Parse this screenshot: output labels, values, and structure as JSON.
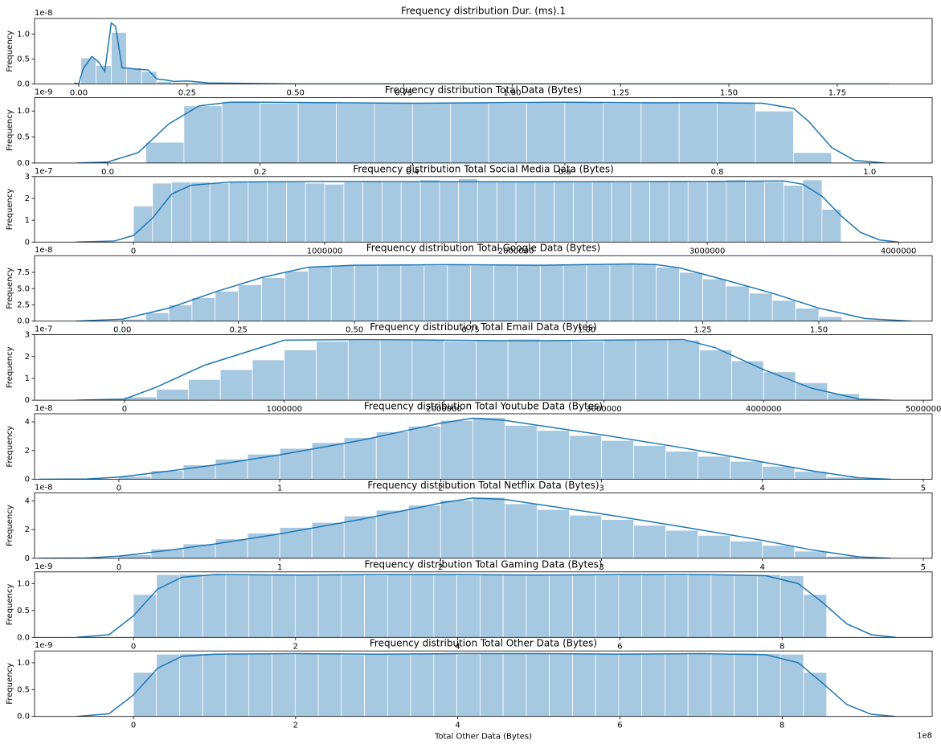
{
  "chart_data": [
    {
      "type": "histogram",
      "title": "Frequency distribution Dur. (ms).1",
      "ylabel": "Frequency",
      "y_offset_label": "1e-8",
      "bins": [
        0.005,
        0.04,
        0.075,
        0.11,
        0.145,
        0.18,
        0.215,
        0.25,
        0.285,
        0.32
      ],
      "counts": [
        0.52,
        0.37,
        1.03,
        0.32,
        0.25,
        0.05,
        0.03,
        0.02,
        0.01
      ],
      "kde": {
        "x": [
          -0.01,
          0.0,
          0.01,
          0.03,
          0.045,
          0.06,
          0.075,
          0.085,
          0.1,
          0.11,
          0.13,
          0.16,
          0.18,
          0.2,
          0.22,
          0.25,
          0.3,
          0.4,
          0.5,
          1.0,
          1.5,
          1.87
        ],
        "y": [
          0.02,
          0.0,
          0.3,
          0.55,
          0.45,
          0.25,
          1.22,
          1.15,
          0.32,
          0.32,
          0.3,
          0.28,
          0.1,
          0.08,
          0.05,
          0.06,
          0.02,
          0.01,
          0,
          0,
          0,
          0
        ]
      },
      "bar_color": "#a6c8e1",
      "line_color": "#1f77b4",
      "xlim": [
        -0.102,
        1.969
      ],
      "ylim": [
        0,
        1.31
      ],
      "xticks": [
        {
          "value": 0,
          "label": "0.00"
        },
        {
          "value": 0.25,
          "label": "0.25"
        },
        {
          "value": 0.5,
          "label": "0.50"
        },
        {
          "value": 0.75,
          "label": "0.75"
        },
        {
          "value": 1,
          "label": "1.00"
        },
        {
          "value": 1.25,
          "label": "1.25"
        },
        {
          "value": 1.5,
          "label": "1.50"
        },
        {
          "value": 1.75,
          "label": "1.75"
        }
      ],
      "yticks": [
        {
          "value": 0,
          "label": "0.0"
        },
        {
          "value": 0.5,
          "label": "0.5"
        },
        {
          "value": 1,
          "label": "1.0"
        }
      ]
    },
    {
      "type": "histogram",
      "title": "Frequency distribution Total Data (Bytes)",
      "ylabel": "Frequency",
      "y_offset_label": "1e-9",
      "bins": [
        0.05,
        0.1,
        0.15,
        0.2,
        0.25,
        0.3,
        0.35,
        0.4,
        0.45,
        0.5,
        0.55,
        0.6,
        0.65,
        0.7,
        0.75,
        0.8,
        0.85,
        0.9,
        0.95
      ],
      "counts": [
        0.4,
        1.1,
        1.17,
        1.15,
        1.16,
        1.15,
        1.17,
        1.15,
        1.16,
        1.15,
        1.16,
        1.17,
        1.15,
        1.16,
        1.15,
        1.16,
        1.0,
        0.2
      ],
      "kde": {
        "x": [
          -0.04,
          0,
          0.04,
          0.08,
          0.12,
          0.16,
          0.2,
          0.3,
          0.4,
          0.5,
          0.6,
          0.7,
          0.8,
          0.86,
          0.9,
          0.92,
          0.95,
          0.98,
          1.02
        ],
        "y": [
          0,
          0.02,
          0.2,
          0.75,
          1.1,
          1.17,
          1.17,
          1.16,
          1.15,
          1.16,
          1.17,
          1.16,
          1.16,
          1.15,
          1.05,
          0.8,
          0.3,
          0.05,
          0
        ]
      },
      "bar_color": "#a6c8e1",
      "line_color": "#1f77b4",
      "xlim": [
        -0.096,
        1.082
      ],
      "ylim": [
        0,
        1.26
      ],
      "xticks": [
        {
          "value": 0,
          "label": "0.0"
        },
        {
          "value": 0.2,
          "label": "0.2"
        },
        {
          "value": 0.4,
          "label": "0.4"
        },
        {
          "value": 0.6,
          "label": "0.6"
        },
        {
          "value": 0.8,
          "label": "0.8"
        },
        {
          "value": 1,
          "label": "1.0"
        }
      ],
      "yticks": [
        {
          "value": 0,
          "label": "0.0"
        },
        {
          "value": 0.5,
          "label": "0.5"
        },
        {
          "value": 1,
          "label": "1.0"
        }
      ]
    },
    {
      "type": "histogram",
      "title": "Frequency distribution Total Social Media Data (Bytes)",
      "ylabel": "Frequency",
      "y_offset_label": "1e-7",
      "bins": [
        0,
        100000,
        200000,
        300000,
        400000,
        500000,
        600000,
        700000,
        800000,
        900000,
        1000000,
        1100000,
        1200000,
        1300000,
        1400000,
        1500000,
        1600000,
        1700000,
        1800000,
        1900000,
        2000000,
        2100000,
        2200000,
        2300000,
        2400000,
        2500000,
        2600000,
        2700000,
        2800000,
        2900000,
        3000000,
        3100000,
        3200000,
        3300000,
        3400000,
        3500000,
        3600000,
        3700000
      ],
      "counts": [
        1.65,
        2.7,
        2.75,
        2.75,
        2.7,
        2.75,
        2.8,
        2.75,
        2.75,
        2.7,
        2.65,
        2.75,
        2.8,
        2.75,
        2.75,
        2.85,
        2.8,
        2.9,
        2.8,
        2.75,
        2.8,
        2.75,
        2.8,
        2.75,
        2.8,
        2.75,
        2.75,
        2.8,
        2.8,
        2.75,
        2.8,
        2.85,
        2.8,
        2.75,
        2.6,
        2.85,
        1.5
      ],
      "kde": {
        "x": [
          -300000,
          -100000,
          0,
          100000,
          200000,
          300000,
          500000,
          1000000,
          2000000,
          3000000,
          3400000,
          3500000,
          3600000,
          3700000,
          3800000,
          3900000,
          4000000
        ],
        "y": [
          0,
          0.05,
          0.3,
          1.1,
          2.2,
          2.6,
          2.75,
          2.78,
          2.76,
          2.78,
          2.8,
          2.65,
          2.1,
          1.2,
          0.45,
          0.1,
          0
        ]
      },
      "bar_color": "#a6c8e1",
      "line_color": "#1f77b4",
      "xlim": [
        -517000,
        4176000
      ],
      "ylim": [
        0,
        3
      ],
      "xticks": [
        0,
        1000000,
        2000000,
        3000000,
        4000000
      ],
      "yticks": [
        0,
        1,
        2,
        3
      ]
    },
    {
      "type": "histogram",
      "title": "Frequency distribution Total Google Data (Bytes)",
      "ylabel": "Frequency",
      "y_offset_label": "1e-8",
      "bins": [
        0,
        0.05,
        0.1,
        0.15,
        0.2,
        0.25,
        0.3,
        0.35,
        0.4,
        0.45,
        0.5,
        0.55,
        0.6,
        0.65,
        0.7,
        0.75,
        0.8,
        0.85,
        0.9,
        0.95,
        1.0,
        1.05,
        1.1,
        1.15,
        1.2,
        1.25,
        1.3,
        1.35,
        1.4,
        1.45,
        1.5,
        1.55
      ],
      "counts": [
        0.3,
        1.3,
        2.5,
        3.6,
        4.6,
        5.6,
        6.7,
        7.7,
        8.4,
        8.6,
        8.7,
        8.7,
        8.6,
        8.6,
        8.7,
        8.6,
        8.6,
        8.7,
        8.7,
        8.8,
        8.7,
        8.8,
        8.8,
        8.3,
        7.5,
        6.5,
        5.4,
        4.3,
        3.2,
        2.0,
        0.7
      ],
      "kde": {
        "x": [
          -0.1,
          0,
          0.1,
          0.2,
          0.3,
          0.4,
          0.5,
          0.7,
          0.9,
          1.1,
          1.15,
          1.2,
          1.3,
          1.4,
          1.5,
          1.6,
          1.7
        ],
        "y": [
          0,
          0.3,
          2.0,
          4.5,
          6.7,
          8.3,
          8.6,
          8.7,
          8.6,
          8.8,
          8.7,
          8.2,
          6.3,
          4.3,
          2.0,
          0.4,
          0
        ]
      },
      "bar_color": "#a6c8e1",
      "line_color": "#1f77b4",
      "xlim": [
        -0.189,
        1.744
      ],
      "ylim": [
        0,
        10.08
      ],
      "xticks": [
        {
          "value": 0,
          "label": "0.00"
        },
        {
          "value": 0.25,
          "label": "0.25"
        },
        {
          "value": 0.5,
          "label": "0.50"
        },
        {
          "value": 0.75,
          "label": "0.75"
        },
        {
          "value": 1,
          "label": "1.00"
        },
        {
          "value": 1.25,
          "label": "1.25"
        },
        {
          "value": 1.5,
          "label": "1.50"
        }
      ],
      "yticks": [
        {
          "value": 0,
          "label": "0.0"
        },
        {
          "value": 2.5,
          "label": "2.5"
        },
        {
          "value": 5,
          "label": "5.0"
        },
        {
          "value": 7.5,
          "label": "7.5"
        }
      ]
    },
    {
      "type": "histogram",
      "title": "Frequency distribution Total Email Data (Bytes)",
      "ylabel": "Frequency",
      "y_offset_label": "1e-7",
      "bins": [
        0,
        200000,
        400000,
        600000,
        800000,
        1000000,
        1200000,
        1400000,
        1600000,
        1800000,
        2000000,
        2200000,
        2400000,
        2600000,
        2800000,
        3000000,
        3200000,
        3400000,
        3600000,
        3800000,
        4000000,
        4200000,
        4400000,
        4600000
      ],
      "counts": [
        0.15,
        0.5,
        0.95,
        1.4,
        1.85,
        2.3,
        2.7,
        2.75,
        2.75,
        2.75,
        2.7,
        2.75,
        2.8,
        2.75,
        2.7,
        2.75,
        2.75,
        2.75,
        2.3,
        1.8,
        1.3,
        0.8,
        0.3
      ],
      "kde": {
        "x": [
          -300000,
          0,
          200000,
          500000,
          1000000,
          1500000,
          2000000,
          2500000,
          3000000,
          3500000,
          3700000,
          4000000,
          4300000,
          4600000,
          4800000
        ],
        "y": [
          0,
          0.05,
          0.6,
          1.6,
          2.75,
          2.78,
          2.75,
          2.72,
          2.75,
          2.78,
          2.4,
          1.4,
          0.55,
          0.05,
          0
        ]
      },
      "bar_color": "#a6c8e1",
      "line_color": "#1f77b4",
      "xlim": [
        -563000,
        5055000
      ],
      "ylim": [
        0,
        3
      ],
      "xticks": [
        0,
        1000000,
        2000000,
        3000000,
        4000000,
        5000000
      ],
      "yticks": [
        0,
        1,
        2,
        3
      ]
    },
    {
      "type": "histogram",
      "title": "Frequency distribution Total Youtube Data (Bytes)",
      "ylabel": "Frequency",
      "y_offset_label": "1e-8",
      "bins": [
        0,
        0.2,
        0.4,
        0.6,
        0.8,
        1.0,
        1.2,
        1.4,
        1.6,
        1.8,
        2.0,
        2.2,
        2.4,
        2.6,
        2.8,
        3.0,
        3.2,
        3.4,
        3.6,
        3.8,
        4.0,
        4.2,
        4.4,
        4.6
      ],
      "counts": [
        0.2,
        0.6,
        1.0,
        1.4,
        1.75,
        2.15,
        2.55,
        2.9,
        3.3,
        3.7,
        4.1,
        4.3,
        3.75,
        3.4,
        3.05,
        2.7,
        2.35,
        1.95,
        1.6,
        1.25,
        0.9,
        0.55,
        0.15
      ],
      "kde": {
        "x": [
          -0.5,
          -0.2,
          0,
          0.3,
          0.6,
          1.0,
          1.5,
          2.0,
          2.2,
          2.4,
          3.0,
          3.5,
          4.0,
          4.3,
          4.6,
          4.8
        ],
        "y": [
          0,
          0.02,
          0.15,
          0.55,
          1.0,
          1.7,
          2.7,
          3.9,
          4.25,
          4.1,
          3.1,
          2.2,
          1.2,
          0.6,
          0.1,
          0
        ]
      },
      "bar_color": "#a6c8e1",
      "line_color": "#1f77b4",
      "xlim": [
        -0.524,
        5.055
      ],
      "ylim": [
        0,
        4.56
      ],
      "xticks": [
        0,
        1,
        2,
        3,
        4,
        5
      ],
      "yticks": [
        0,
        2,
        4
      ]
    },
    {
      "type": "histogram",
      "title": "Frequency distribution Total Netflix Data (Bytes)",
      "ylabel": "Frequency",
      "y_offset_label": "1e-8",
      "bins": [
        0,
        0.2,
        0.4,
        0.6,
        0.8,
        1.0,
        1.2,
        1.4,
        1.6,
        1.8,
        2.0,
        2.2,
        2.4,
        2.6,
        2.8,
        3.0,
        3.2,
        3.4,
        3.6,
        3.8,
        4.0,
        4.2,
        4.4,
        4.6
      ],
      "counts": [
        0.25,
        0.65,
        1.0,
        1.35,
        1.75,
        2.15,
        2.5,
        2.95,
        3.35,
        3.7,
        4.05,
        4.25,
        3.8,
        3.4,
        3.0,
        2.7,
        2.3,
        1.95,
        1.6,
        1.2,
        0.9,
        0.5,
        0.15
      ],
      "kde": {
        "x": [
          -0.5,
          -0.2,
          0,
          0.3,
          0.6,
          1.0,
          1.5,
          2.0,
          2.2,
          2.4,
          3.0,
          3.5,
          4.0,
          4.3,
          4.6,
          4.8
        ],
        "y": [
          0,
          0.02,
          0.15,
          0.55,
          1.0,
          1.7,
          2.7,
          3.85,
          4.2,
          4.1,
          3.1,
          2.2,
          1.25,
          0.6,
          0.1,
          0
        ]
      },
      "bar_color": "#a6c8e1",
      "line_color": "#1f77b4",
      "xlim": [
        -0.524,
        5.055
      ],
      "ylim": [
        0,
        4.56
      ],
      "xticks": [
        0,
        1,
        2,
        3,
        4,
        5
      ],
      "yticks": [
        0,
        2,
        4
      ]
    },
    {
      "type": "histogram",
      "title": "Frequency distribution Total Gaming Data (Bytes)",
      "ylabel": "Frequency",
      "y_offset_label": "1e-9",
      "bins": [
        0,
        0.285,
        0.57,
        0.855,
        1.14,
        1.425,
        1.71,
        1.995,
        2.28,
        2.565,
        2.85,
        3.135,
        3.42,
        3.705,
        3.99,
        4.275,
        4.56,
        4.845,
        5.13,
        5.415,
        5.7,
        5.985,
        6.27,
        6.555,
        6.84,
        7.125,
        7.41,
        7.695,
        7.98,
        8.265,
        8.55
      ],
      "counts": [
        0.8,
        1.17,
        1.18,
        1.17,
        1.16,
        1.17,
        1.17,
        1.16,
        1.18,
        1.17,
        1.16,
        1.17,
        1.17,
        1.18,
        1.16,
        1.17,
        1.17,
        1.16,
        1.17,
        1.18,
        1.16,
        1.17,
        1.17,
        1.16,
        1.17,
        1.18,
        1.17,
        1.17,
        1.15,
        0.8
      ],
      "kde": {
        "x": [
          -0.7,
          -0.3,
          0,
          0.3,
          0.6,
          1.0,
          2,
          3,
          4,
          5,
          6,
          7,
          7.8,
          8.2,
          8.5,
          8.8,
          9.1,
          9.4
        ],
        "y": [
          0,
          0.05,
          0.4,
          0.9,
          1.12,
          1.17,
          1.16,
          1.17,
          1.17,
          1.16,
          1.17,
          1.17,
          1.15,
          1.0,
          0.65,
          0.25,
          0.05,
          0
        ]
      },
      "bar_color": "#a6c8e1",
      "line_color": "#1f77b4",
      "xlim": [
        -1.219,
        9.851
      ],
      "ylim": [
        0,
        1.22
      ],
      "xticks": [
        0,
        2,
        4,
        6,
        8
      ],
      "yticks": [
        {
          "value": 0,
          "label": "0.0"
        },
        {
          "value": 0.5,
          "label": "0.5"
        },
        {
          "value": 1,
          "label": "1.0"
        }
      ]
    },
    {
      "type": "histogram",
      "title": "Frequency distribution Total Other Data (Bytes)",
      "ylabel": "Frequency",
      "y_offset_label": "1e-9",
      "xlabel": "Total Other Data (Bytes)",
      "x_offset_label": "1e8",
      "bins": [
        0,
        0.285,
        0.57,
        0.855,
        1.14,
        1.425,
        1.71,
        1.995,
        2.28,
        2.565,
        2.85,
        3.135,
        3.42,
        3.705,
        3.99,
        4.275,
        4.56,
        4.845,
        5.13,
        5.415,
        5.7,
        5.985,
        6.27,
        6.555,
        6.84,
        7.125,
        7.41,
        7.695,
        7.98,
        8.265,
        8.55
      ],
      "counts": [
        0.82,
        1.16,
        1.17,
        1.17,
        1.18,
        1.17,
        1.16,
        1.17,
        1.18,
        1.15,
        1.16,
        1.17,
        1.18,
        1.17,
        1.16,
        1.17,
        1.18,
        1.17,
        1.16,
        1.17,
        1.17,
        1.18,
        1.16,
        1.17,
        1.17,
        1.16,
        1.18,
        1.17,
        1.16,
        0.82
      ],
      "kde": {
        "x": [
          -0.7,
          -0.3,
          0,
          0.3,
          0.6,
          1.0,
          2,
          3,
          4,
          5,
          6,
          7,
          7.8,
          8.2,
          8.5,
          8.8,
          9.1,
          9.4
        ],
        "y": [
          0,
          0.05,
          0.4,
          0.9,
          1.12,
          1.16,
          1.17,
          1.16,
          1.17,
          1.17,
          1.16,
          1.17,
          1.15,
          1.0,
          0.62,
          0.22,
          0.04,
          0
        ]
      },
      "bar_color": "#a6c8e1",
      "line_color": "#1f77b4",
      "xlim": [
        -1.219,
        9.851
      ],
      "ylim": [
        0,
        1.22
      ],
      "xticks": [
        0,
        2,
        4,
        6,
        8
      ],
      "yticks": [
        {
          "value": 0,
          "label": "0.0"
        },
        {
          "value": 0.5,
          "label": "0.5"
        },
        {
          "value": 1,
          "label": "1.0"
        }
      ]
    }
  ]
}
